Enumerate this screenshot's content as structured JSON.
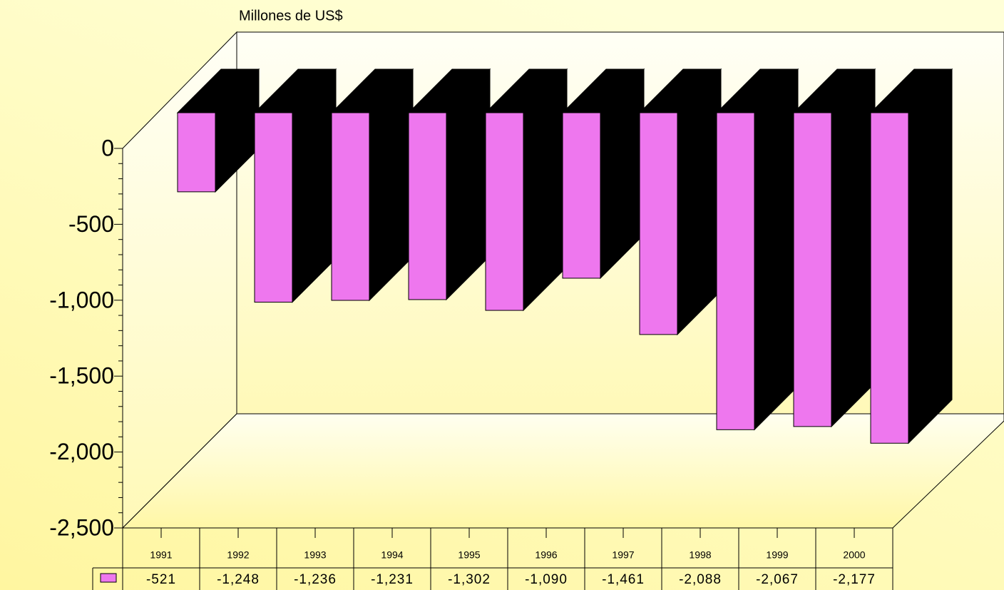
{
  "chart_data": {
    "type": "bar3d",
    "title": "Millones de US$",
    "categories": [
      "1991",
      "1992",
      "1993",
      "1994",
      "1995",
      "1996",
      "1997",
      "1998",
      "1999",
      "2000"
    ],
    "values": [
      -521,
      -1248,
      -1236,
      -1231,
      -1302,
      -1090,
      -1461,
      -2088,
      -2067,
      -2177
    ],
    "value_labels": [
      "-521",
      "-1,248",
      "-1,236",
      "-1,231",
      "-1,302",
      "-1,090",
      "-1,461",
      "-2,088",
      "-2,067",
      "-2,177"
    ],
    "color": "#ee77ee",
    "ylim": [
      -2500,
      0
    ],
    "yticks": [
      0,
      -500,
      {
        "value": -1000,
        "label": "-1,000"
      },
      {
        "value": -1500,
        "label": "-1,500"
      },
      {
        "value": -2000,
        "label": "-2,000"
      },
      {
        "value": -2500,
        "label": "-2,500"
      }
    ]
  }
}
